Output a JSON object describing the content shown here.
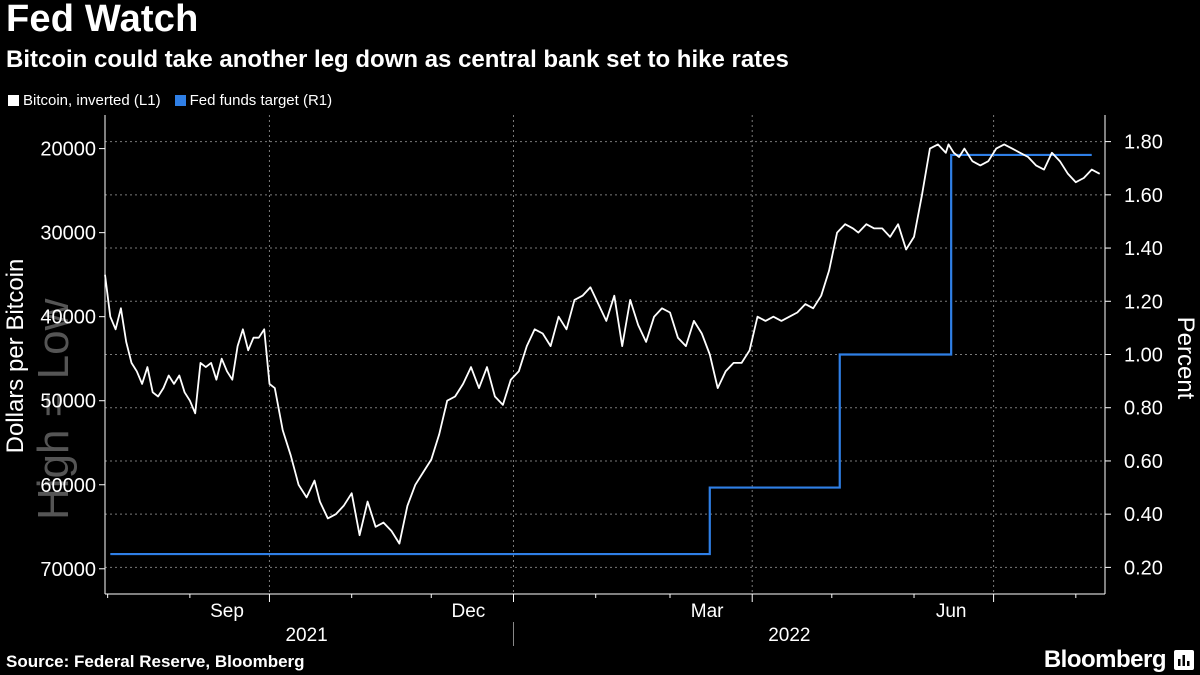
{
  "chart_data": {
    "type": "line",
    "title": "Fed Watch",
    "subtitle": "Bitcoin could take another leg down as central bank set to hike rates",
    "ylabel_left": "Dollars per Bitcoin",
    "ylabel_right": "Percent",
    "watermark": "High = Low",
    "legend_position": "top-left",
    "grid": true,
    "y_left": {
      "inverted": true,
      "ylim": [
        16000,
        73000
      ],
      "ticks": [
        20000,
        30000,
        40000,
        50000,
        60000,
        70000
      ],
      "tick_labels": [
        "20000",
        "30000",
        "40000",
        "50000",
        "60000",
        "70000"
      ]
    },
    "y_right": {
      "ylim": [
        0.1,
        1.9
      ],
      "ticks": [
        0.2,
        0.4,
        0.6,
        0.8,
        1.0,
        1.2,
        1.4,
        1.6,
        1.8
      ],
      "tick_labels": [
        "0.20",
        "0.40",
        "0.60",
        "0.80",
        "1.00",
        "1.20",
        "1.40",
        "1.60",
        "1.80"
      ]
    },
    "x_axis": {
      "range": [
        "2021-07-31",
        "2022-08-12"
      ],
      "month_labels": [
        {
          "date": "2021-09-15",
          "label": "Sep"
        },
        {
          "date": "2021-12-15",
          "label": "Dec"
        },
        {
          "date": "2022-03-15",
          "label": "Mar"
        },
        {
          "date": "2022-06-15",
          "label": "Jun"
        }
      ],
      "year_labels": [
        {
          "date": "2021-10-15",
          "label": "2021"
        },
        {
          "date": "2022-04-15",
          "label": "2022"
        }
      ],
      "year_divider": "2022-01-01"
    },
    "series": [
      {
        "name": "Bitcoin, inverted (L1)",
        "axis": "left",
        "color": "#ffffff",
        "x": [
          "2021-07-31",
          "2021-08-02",
          "2021-08-04",
          "2021-08-06",
          "2021-08-08",
          "2021-08-10",
          "2021-08-12",
          "2021-08-14",
          "2021-08-16",
          "2021-08-18",
          "2021-08-20",
          "2021-08-22",
          "2021-08-24",
          "2021-08-26",
          "2021-08-28",
          "2021-08-30",
          "2021-09-01",
          "2021-09-03",
          "2021-09-05",
          "2021-09-07",
          "2021-09-09",
          "2021-09-11",
          "2021-09-13",
          "2021-09-15",
          "2021-09-17",
          "2021-09-19",
          "2021-09-21",
          "2021-09-23",
          "2021-09-25",
          "2021-09-27",
          "2021-09-29",
          "2021-10-01",
          "2021-10-03",
          "2021-10-06",
          "2021-10-09",
          "2021-10-12",
          "2021-10-15",
          "2021-10-18",
          "2021-10-20",
          "2021-10-23",
          "2021-10-26",
          "2021-10-29",
          "2021-11-01",
          "2021-11-04",
          "2021-11-07",
          "2021-11-10",
          "2021-11-13",
          "2021-11-16",
          "2021-11-19",
          "2021-11-22",
          "2021-11-25",
          "2021-11-28",
          "2021-12-01",
          "2021-12-04",
          "2021-12-07",
          "2021-12-10",
          "2021-12-13",
          "2021-12-16",
          "2021-12-19",
          "2021-12-22",
          "2021-12-25",
          "2021-12-28",
          "2021-12-31",
          "2022-01-03",
          "2022-01-06",
          "2022-01-09",
          "2022-01-12",
          "2022-01-15",
          "2022-01-18",
          "2022-01-21",
          "2022-01-24",
          "2022-01-27",
          "2022-01-30",
          "2022-02-02",
          "2022-02-05",
          "2022-02-08",
          "2022-02-11",
          "2022-02-14",
          "2022-02-17",
          "2022-02-20",
          "2022-02-23",
          "2022-02-26",
          "2022-03-01",
          "2022-03-04",
          "2022-03-07",
          "2022-03-10",
          "2022-03-13",
          "2022-03-16",
          "2022-03-19",
          "2022-03-22",
          "2022-03-25",
          "2022-03-28",
          "2022-03-31",
          "2022-04-03",
          "2022-04-06",
          "2022-04-09",
          "2022-04-12",
          "2022-04-15",
          "2022-04-18",
          "2022-04-21",
          "2022-04-24",
          "2022-04-27",
          "2022-04-30",
          "2022-05-03",
          "2022-05-06",
          "2022-05-09",
          "2022-05-11",
          "2022-05-14",
          "2022-05-17",
          "2022-05-20",
          "2022-05-23",
          "2022-05-26",
          "2022-05-29",
          "2022-06-01",
          "2022-06-04",
          "2022-06-07",
          "2022-06-10",
          "2022-06-13",
          "2022-06-14",
          "2022-06-16",
          "2022-06-18",
          "2022-06-20",
          "2022-06-23",
          "2022-06-26",
          "2022-06-29",
          "2022-07-02",
          "2022-07-05",
          "2022-07-08",
          "2022-07-11",
          "2022-07-14",
          "2022-07-17",
          "2022-07-20",
          "2022-07-23",
          "2022-07-26",
          "2022-07-29",
          "2022-08-01",
          "2022-08-04",
          "2022-08-07",
          "2022-08-10"
        ],
        "values": [
          35000,
          40000,
          41500,
          39000,
          43000,
          45500,
          46500,
          48000,
          46000,
          49000,
          49500,
          48500,
          47000,
          48000,
          47000,
          49000,
          50000,
          51500,
          45500,
          46000,
          45500,
          47500,
          45000,
          46500,
          47500,
          43500,
          41500,
          44000,
          42500,
          42500,
          41500,
          48000,
          48500,
          53500,
          56500,
          60000,
          61500,
          59500,
          62000,
          64000,
          63500,
          62500,
          61000,
          66000,
          62000,
          65000,
          64500,
          65500,
          67000,
          62500,
          60000,
          58500,
          57000,
          54000,
          50000,
          49500,
          48000,
          46000,
          48500,
          46000,
          49500,
          50500,
          47500,
          46500,
          43500,
          41500,
          42000,
          43500,
          40000,
          41500,
          38000,
          37500,
          36500,
          38500,
          40500,
          37500,
          43500,
          38000,
          41000,
          43000,
          40000,
          39000,
          39500,
          42500,
          43500,
          40500,
          42000,
          44500,
          48500,
          46500,
          45500,
          45500,
          44000,
          40000,
          40500,
          40000,
          40500,
          40000,
          39500,
          38500,
          39000,
          37500,
          34500,
          30000,
          29000,
          29500,
          30000,
          29000,
          29500,
          29500,
          30500,
          29000,
          32000,
          30500,
          25500,
          20000,
          19500,
          20500,
          19500,
          20500,
          21000,
          20000,
          21500,
          22000,
          21500,
          20000,
          19500,
          20000,
          20500,
          21000,
          22000,
          22500,
          20500,
          21500,
          23000,
          24000,
          23500,
          22500,
          23000
        ]
      },
      {
        "name": "Fed funds target (R1)",
        "axis": "right",
        "color": "#2f7fe6",
        "step": true,
        "x": [
          "2021-08-02",
          "2022-03-16",
          "2022-05-04",
          "2022-06-15",
          "2022-08-07"
        ],
        "values": [
          0.25,
          0.5,
          1.0,
          1.75,
          1.75
        ]
      }
    ]
  },
  "footer": {
    "source": "Source: Federal Reserve, Bloomberg",
    "brand": "Bloomberg"
  }
}
